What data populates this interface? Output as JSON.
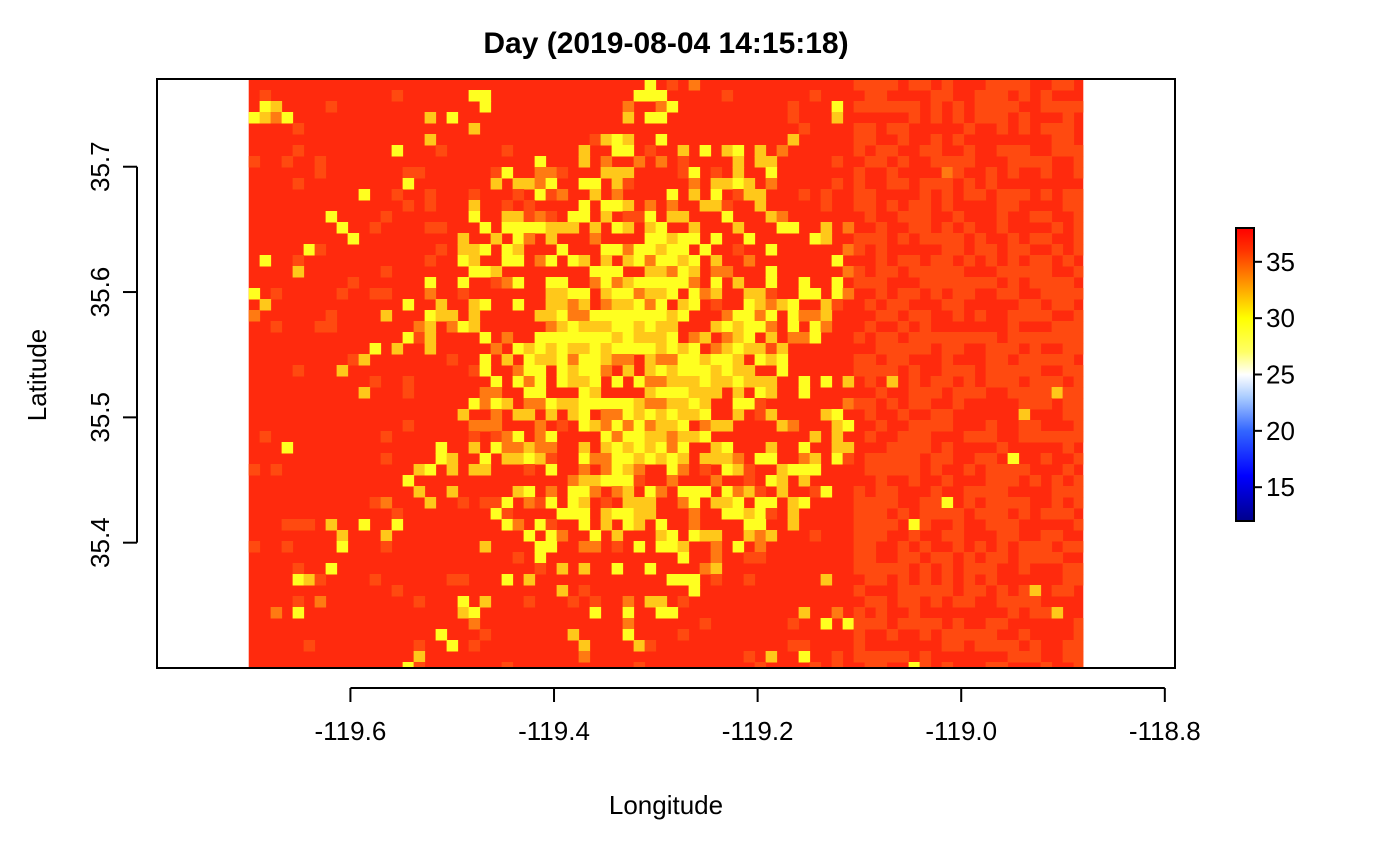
{
  "chart_data": {
    "type": "heatmap",
    "title": "Day (2019-08-04 14:15:18)",
    "xlabel": "Longitude",
    "ylabel": "Latitude",
    "xlim": [
      -119.79,
      -118.79
    ],
    "ylim": [
      35.3,
      35.77
    ],
    "raster_extent": {
      "x": [
        -119.7,
        -118.88
      ],
      "y": [
        35.3,
        35.77
      ]
    },
    "x_ticks": [
      -119.6,
      -119.4,
      -119.2,
      -119.0,
      -118.8
    ],
    "x_tick_labels": [
      "-119.6",
      "-119.4",
      "-119.2",
      "-119.0",
      "-118.8"
    ],
    "y_ticks": [
      35.4,
      35.5,
      35.6,
      35.7
    ],
    "y_tick_labels": [
      "35.4",
      "35.5",
      "35.6",
      "35.7"
    ],
    "colorbar": {
      "range": [
        12,
        38
      ],
      "ticks": [
        15,
        20,
        25,
        30,
        35
      ],
      "tick_labels": [
        "15",
        "20",
        "25",
        "30",
        "35"
      ],
      "stops": [
        {
          "value": 12,
          "color": "#00008b"
        },
        {
          "value": 16,
          "color": "#0000ff"
        },
        {
          "value": 20,
          "color": "#3366ff"
        },
        {
          "value": 23,
          "color": "#aaccff"
        },
        {
          "value": 25,
          "color": "#ffffff"
        },
        {
          "value": 27,
          "color": "#ffff66"
        },
        {
          "value": 30,
          "color": "#ffff00"
        },
        {
          "value": 33,
          "color": "#ff9900"
        },
        {
          "value": 36,
          "color": "#ff3300"
        },
        {
          "value": 38,
          "color": "#ff0000"
        }
      ]
    },
    "colors": {
      "hot": "#ff2a0d",
      "hot_orange": "#ff4a10",
      "warm_orange": "#ff7a12",
      "warm_yellow": "#ffc81a",
      "cool_yellow": "#ffff20"
    }
  }
}
